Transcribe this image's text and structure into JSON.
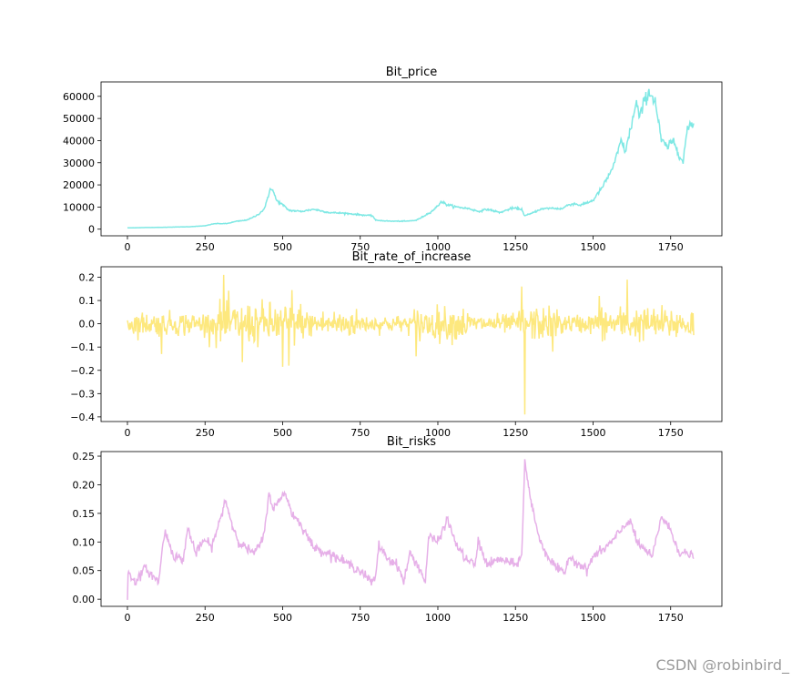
{
  "watermark": "CSDN @robinbird_",
  "chart_data": [
    {
      "type": "line",
      "title": "Bit_price",
      "xlabel": "",
      "ylabel": "",
      "color": "#7ee8e4",
      "xlim": [
        -85,
        1915
      ],
      "ylim": [
        -3000,
        66500
      ],
      "xticks": [
        0,
        250,
        500,
        750,
        1000,
        1250,
        1500,
        1750
      ],
      "yticks": [
        0,
        10000,
        20000,
        30000,
        40000,
        50000,
        60000
      ],
      "ytick_labels": [
        "0",
        "10000",
        "20000",
        "30000",
        "40000",
        "50000",
        "60000"
      ],
      "grid": false,
      "anchors": [
        [
          0,
          600
        ],
        [
          100,
          800
        ],
        [
          200,
          1100
        ],
        [
          250,
          1500
        ],
        [
          280,
          2500
        ],
        [
          320,
          2500
        ],
        [
          350,
          3500
        ],
        [
          380,
          4000
        ],
        [
          400,
          5000
        ],
        [
          420,
          6500
        ],
        [
          440,
          9000
        ],
        [
          455,
          15000
        ],
        [
          460,
          19000
        ],
        [
          470,
          17000
        ],
        [
          480,
          13000
        ],
        [
          500,
          11000
        ],
        [
          520,
          8500
        ],
        [
          560,
          8000
        ],
        [
          600,
          9000
        ],
        [
          650,
          7500
        ],
        [
          700,
          7200
        ],
        [
          750,
          6500
        ],
        [
          790,
          6000
        ],
        [
          800,
          4000
        ],
        [
          850,
          3600
        ],
        [
          900,
          3600
        ],
        [
          930,
          4000
        ],
        [
          950,
          5500
        ],
        [
          980,
          8000
        ],
        [
          1000,
          10500
        ],
        [
          1010,
          12500
        ],
        [
          1030,
          11000
        ],
        [
          1060,
          10000
        ],
        [
          1100,
          9300
        ],
        [
          1130,
          8000
        ],
        [
          1160,
          9000
        ],
        [
          1200,
          7500
        ],
        [
          1240,
          9500
        ],
        [
          1270,
          9000
        ],
        [
          1280,
          6000
        ],
        [
          1300,
          7000
        ],
        [
          1330,
          9000
        ],
        [
          1360,
          9500
        ],
        [
          1400,
          9200
        ],
        [
          1420,
          11000
        ],
        [
          1440,
          11500
        ],
        [
          1460,
          10800
        ],
        [
          1500,
          13000
        ],
        [
          1530,
          19000
        ],
        [
          1550,
          24000
        ],
        [
          1570,
          30000
        ],
        [
          1590,
          40000
        ],
        [
          1605,
          35000
        ],
        [
          1620,
          45000
        ],
        [
          1640,
          57000
        ],
        [
          1650,
          50000
        ],
        [
          1665,
          58000
        ],
        [
          1680,
          62000
        ],
        [
          1700,
          58000
        ],
        [
          1720,
          40000
        ],
        [
          1740,
          37000
        ],
        [
          1760,
          40000
        ],
        [
          1780,
          33000
        ],
        [
          1790,
          30000
        ],
        [
          1800,
          42000
        ],
        [
          1810,
          47000
        ],
        [
          1825,
          48000
        ]
      ]
    },
    {
      "type": "line",
      "title": "Bit_rate_of_increase",
      "xlabel": "",
      "ylabel": "",
      "color": "#fde87e",
      "xlim": [
        -85,
        1915
      ],
      "ylim": [
        -0.42,
        0.245
      ],
      "xticks": [
        0,
        250,
        500,
        750,
        1000,
        1250,
        1500,
        1750
      ],
      "yticks": [
        -0.4,
        -0.3,
        -0.2,
        -0.1,
        0.0,
        0.1,
        0.2
      ],
      "ytick_labels": [
        "−0.4",
        "−0.3",
        "−0.2",
        "−0.1",
        "0.0",
        "0.1",
        "0.2"
      ],
      "grid": false,
      "spikes": [
        [
          310,
          0.21
        ],
        [
          455,
          0.215
        ],
        [
          530,
          0.145
        ],
        [
          930,
          0.145
        ],
        [
          1015,
          0.145
        ],
        [
          1270,
          0.16
        ],
        [
          1520,
          0.12
        ],
        [
          1610,
          0.19
        ],
        [
          1280,
          -0.39
        ],
        [
          500,
          -0.185
        ],
        [
          520,
          -0.18
        ],
        [
          370,
          -0.165
        ],
        [
          110,
          -0.13
        ],
        [
          195,
          -0.12
        ],
        [
          1715,
          -0.135
        ],
        [
          930,
          -0.14
        ],
        [
          1370,
          -0.12
        ]
      ]
    },
    {
      "type": "line",
      "title": "Bit_risks",
      "xlabel": "",
      "ylabel": "",
      "color": "#e6b0e8",
      "xlim": [
        -85,
        1915
      ],
      "ylim": [
        -0.0125,
        0.258
      ],
      "xticks": [
        0,
        250,
        500,
        750,
        1000,
        1250,
        1500,
        1750
      ],
      "yticks": [
        0.0,
        0.05,
        0.1,
        0.15,
        0.2,
        0.25
      ],
      "ytick_labels": [
        "0.00",
        "0.05",
        "0.10",
        "0.15",
        "0.20",
        "0.25"
      ],
      "grid": false,
      "anchors": [
        [
          0,
          0.0
        ],
        [
          2,
          0.045
        ],
        [
          30,
          0.03
        ],
        [
          55,
          0.055
        ],
        [
          100,
          0.03
        ],
        [
          120,
          0.12
        ],
        [
          150,
          0.075
        ],
        [
          180,
          0.07
        ],
        [
          195,
          0.125
        ],
        [
          220,
          0.08
        ],
        [
          250,
          0.105
        ],
        [
          270,
          0.09
        ],
        [
          300,
          0.14
        ],
        [
          315,
          0.175
        ],
        [
          340,
          0.125
        ],
        [
          360,
          0.1
        ],
        [
          380,
          0.09
        ],
        [
          410,
          0.08
        ],
        [
          440,
          0.11
        ],
        [
          455,
          0.185
        ],
        [
          470,
          0.16
        ],
        [
          490,
          0.17
        ],
        [
          505,
          0.19
        ],
        [
          530,
          0.15
        ],
        [
          560,
          0.13
        ],
        [
          600,
          0.09
        ],
        [
          650,
          0.08
        ],
        [
          700,
          0.065
        ],
        [
          750,
          0.05
        ],
        [
          790,
          0.028
        ],
        [
          800,
          0.04
        ],
        [
          810,
          0.095
        ],
        [
          840,
          0.07
        ],
        [
          870,
          0.06
        ],
        [
          890,
          0.03
        ],
        [
          910,
          0.08
        ],
        [
          940,
          0.055
        ],
        [
          960,
          0.03
        ],
        [
          970,
          0.11
        ],
        [
          1000,
          0.1
        ],
        [
          1030,
          0.14
        ],
        [
          1060,
          0.095
        ],
        [
          1090,
          0.07
        ],
        [
          1120,
          0.06
        ],
        [
          1130,
          0.1
        ],
        [
          1160,
          0.06
        ],
        [
          1200,
          0.07
        ],
        [
          1250,
          0.06
        ],
        [
          1270,
          0.075
        ],
        [
          1280,
          0.24
        ],
        [
          1300,
          0.17
        ],
        [
          1330,
          0.1
        ],
        [
          1360,
          0.07
        ],
        [
          1390,
          0.05
        ],
        [
          1410,
          0.045
        ],
        [
          1420,
          0.075
        ],
        [
          1460,
          0.06
        ],
        [
          1480,
          0.05
        ],
        [
          1500,
          0.075
        ],
        [
          1530,
          0.085
        ],
        [
          1560,
          0.1
        ],
        [
          1590,
          0.12
        ],
        [
          1620,
          0.14
        ],
        [
          1640,
          0.1
        ],
        [
          1670,
          0.085
        ],
        [
          1690,
          0.072
        ],
        [
          1720,
          0.145
        ],
        [
          1750,
          0.12
        ],
        [
          1780,
          0.08
        ],
        [
          1800,
          0.08
        ],
        [
          1825,
          0.075
        ]
      ]
    }
  ]
}
